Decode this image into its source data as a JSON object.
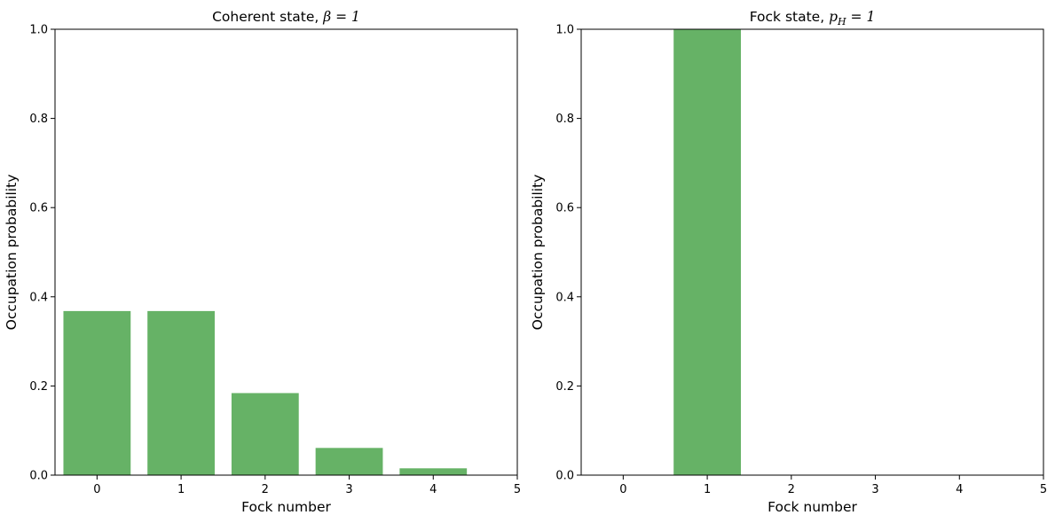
{
  "chart_data": [
    {
      "type": "bar",
      "title_text": "Coherent state, ",
      "title_math": "β = 1",
      "xlabel": "Fock number",
      "ylabel": "Occupation probability",
      "categories": [
        0,
        1,
        2,
        3,
        4
      ],
      "values": [
        0.368,
        0.368,
        0.184,
        0.061,
        0.0153
      ],
      "xlim": [
        -0.5,
        5
      ],
      "ylim": [
        0,
        1
      ],
      "xticks": [
        "0",
        "1",
        "2",
        "3",
        "4",
        "5"
      ],
      "yticks": [
        "0.0",
        "0.2",
        "0.4",
        "0.6",
        "0.8",
        "1.0"
      ],
      "bar_color": "#66b266",
      "grid": false
    },
    {
      "type": "bar",
      "title_text": "Fock state, ",
      "title_math": "p",
      "title_math_sub": "H",
      "title_math_tail": " = 1",
      "xlabel": "Fock number",
      "ylabel": "Occupation probability",
      "categories": [
        0,
        1,
        2,
        3,
        4
      ],
      "values": [
        0,
        1,
        0,
        0,
        0
      ],
      "xlim": [
        -0.5,
        5
      ],
      "ylim": [
        0,
        1
      ],
      "xticks": [
        "0",
        "1",
        "2",
        "3",
        "4",
        "5"
      ],
      "yticks": [
        "0.0",
        "0.2",
        "0.4",
        "0.6",
        "0.8",
        "1.0"
      ],
      "bar_color": "#66b266",
      "grid": false
    }
  ]
}
